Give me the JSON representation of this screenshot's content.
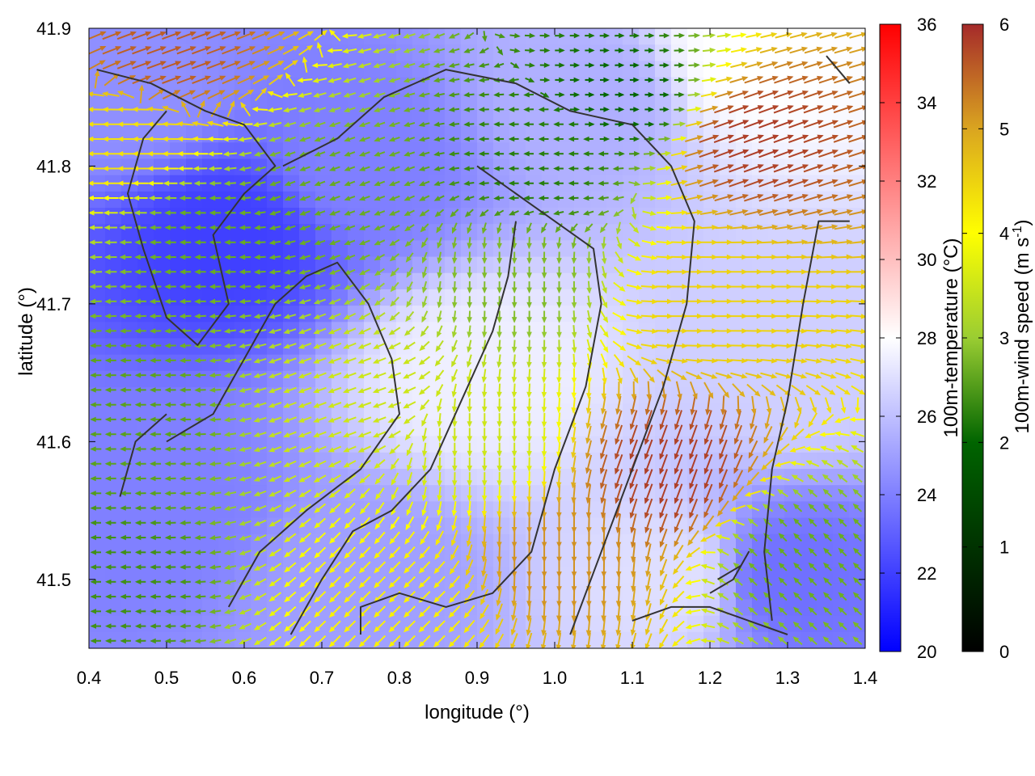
{
  "chart_data": {
    "type": "heatmap",
    "title": "",
    "xlabel": "longitude (°)",
    "ylabel": "latitude (°)",
    "xlim": [
      0.4,
      1.4
    ],
    "ylim": [
      41.45,
      41.9
    ],
    "x_ticks": [
      0.4,
      0.5,
      0.6,
      0.7,
      0.8,
      0.9,
      1.0,
      1.1,
      1.2,
      1.3,
      1.4
    ],
    "y_ticks": [
      41.5,
      41.6,
      41.7,
      41.8,
      41.9
    ],
    "x_tick_labels": [
      "0.4",
      "0.5",
      "0.6",
      "0.7",
      "0.8",
      "0.9",
      "1.0",
      "1.1",
      "1.2",
      "1.3",
      "1.4"
    ],
    "y_tick_labels": [
      "41.5",
      "41.6",
      "41.7",
      "41.8",
      "41.9"
    ],
    "temperature_colorbar": {
      "label": "100m-temperature (°C)",
      "range": [
        20,
        36
      ],
      "ticks": [
        20,
        22,
        24,
        26,
        28,
        30,
        32,
        34,
        36
      ],
      "tick_labels": [
        "20",
        "22",
        "24",
        "26",
        "28",
        "30",
        "32",
        "34",
        "36"
      ],
      "colors": [
        "#0000ff",
        "#ffffff",
        "#ff0000"
      ]
    },
    "wind_colorbar": {
      "label_main": "100m-wind speed (m s",
      "label_sup": "-1",
      "label_end": ")",
      "range": [
        0,
        6
      ],
      "ticks": [
        0,
        1,
        2,
        3,
        4,
        5,
        6
      ],
      "tick_labels": [
        "0",
        "1",
        "2",
        "3",
        "4",
        "5",
        "6"
      ],
      "colors": [
        "#000000",
        "#006400",
        "#9acd32",
        "#ffff00",
        "#daa520",
        "#a52a2a"
      ]
    },
    "temperature_field": [
      {
        "lon": 0.45,
        "lat": 41.85,
        "t": 24.5
      },
      {
        "lon": 0.58,
        "lat": 41.75,
        "t": 22.0
      },
      {
        "lon": 0.75,
        "lat": 41.8,
        "t": 24.0
      },
      {
        "lon": 0.9,
        "lat": 41.65,
        "t": 27.5
      },
      {
        "lon": 1.05,
        "lat": 41.85,
        "t": 25.5
      },
      {
        "lon": 1.25,
        "lat": 41.88,
        "t": 28.0
      },
      {
        "lon": 1.3,
        "lat": 41.65,
        "t": 26.5
      },
      {
        "lon": 1.15,
        "lat": 41.5,
        "t": 27.0
      },
      {
        "lon": 0.5,
        "lat": 41.55,
        "t": 24.0
      },
      {
        "lon": 0.75,
        "lat": 41.5,
        "t": 25.0
      },
      {
        "lon": 1.3,
        "lat": 41.5,
        "t": 23.5
      }
    ],
    "wind_regions": [
      {
        "lon": 0.45,
        "lat": 41.62,
        "dir_deg": 180,
        "speed": 1.9
      },
      {
        "lon": 0.42,
        "lat": 41.5,
        "dir_deg": 180,
        "speed": 1.7
      },
      {
        "lon": 0.55,
        "lat": 41.75,
        "dir_deg": 180,
        "speed": 2.0
      },
      {
        "lon": 0.7,
        "lat": 41.78,
        "dir_deg": 200,
        "speed": 2.0
      },
      {
        "lon": 0.75,
        "lat": 41.63,
        "dir_deg": 200,
        "speed": 3.0
      },
      {
        "lon": 0.8,
        "lat": 41.48,
        "dir_deg": 225,
        "speed": 3.8
      },
      {
        "lon": 0.9,
        "lat": 41.6,
        "dir_deg": 270,
        "speed": 3.0
      },
      {
        "lon": 0.95,
        "lat": 41.72,
        "dir_deg": 270,
        "speed": 2.2
      },
      {
        "lon": 0.98,
        "lat": 41.8,
        "dir_deg": 180,
        "speed": 1.5
      },
      {
        "lon": 1.0,
        "lat": 41.52,
        "dir_deg": 270,
        "speed": 5.0
      },
      {
        "lon": 1.15,
        "lat": 41.58,
        "dir_deg": 250,
        "speed": 5.8
      },
      {
        "lon": 1.2,
        "lat": 41.7,
        "dir_deg": 0,
        "speed": 4.2
      },
      {
        "lon": 1.25,
        "lat": 41.82,
        "dir_deg": 20,
        "speed": 5.8
      },
      {
        "lon": 0.5,
        "lat": 41.88,
        "dir_deg": 20,
        "speed": 5.5
      },
      {
        "lon": 0.45,
        "lat": 41.82,
        "dir_deg": 180,
        "speed": 4.0
      },
      {
        "lon": 1.32,
        "lat": 41.52,
        "dir_deg": 135,
        "speed": 2.0
      },
      {
        "lon": 1.1,
        "lat": 41.85,
        "dir_deg": 0,
        "speed": 1.2
      }
    ],
    "contours": [
      [
        [
          0.66,
          41.46
        ],
        [
          0.7,
          41.5
        ],
        [
          0.74,
          41.535
        ],
        [
          0.79,
          41.55
        ],
        [
          0.84,
          41.58
        ],
        [
          0.88,
          41.63
        ],
        [
          0.92,
          41.68
        ],
        [
          0.94,
          41.72
        ],
        [
          0.95,
          41.76
        ]
      ],
      [
        [
          0.75,
          41.46
        ],
        [
          0.75,
          41.48
        ],
        [
          0.8,
          41.49
        ],
        [
          0.86,
          41.48
        ],
        [
          0.92,
          41.49
        ],
        [
          0.97,
          41.52
        ],
        [
          1.0,
          41.58
        ],
        [
          1.04,
          41.64
        ],
        [
          1.06,
          41.7
        ],
        [
          1.05,
          41.74
        ],
        [
          1.0,
          41.76
        ],
        [
          0.95,
          41.78
        ],
        [
          0.9,
          41.8
        ]
      ],
      [
        [
          1.02,
          41.46
        ],
        [
          1.06,
          41.52
        ],
        [
          1.1,
          41.58
        ],
        [
          1.14,
          41.64
        ],
        [
          1.17,
          41.7
        ],
        [
          1.18,
          41.76
        ],
        [
          1.15,
          41.8
        ],
        [
          1.1,
          41.83
        ],
        [
          1.02,
          41.84
        ],
        [
          0.95,
          41.86
        ],
        [
          0.86,
          41.87
        ],
        [
          0.78,
          41.85
        ],
        [
          0.72,
          41.82
        ],
        [
          0.65,
          41.8
        ]
      ],
      [
        [
          1.28,
          41.47
        ],
        [
          1.27,
          41.52
        ],
        [
          1.28,
          41.58
        ],
        [
          1.3,
          41.63
        ],
        [
          1.32,
          41.7
        ],
        [
          1.34,
          41.76
        ],
        [
          1.38,
          41.76
        ]
      ],
      [
        [
          0.5,
          41.6
        ],
        [
          0.56,
          41.62
        ],
        [
          0.6,
          41.66
        ],
        [
          0.64,
          41.7
        ],
        [
          0.68,
          41.72
        ],
        [
          0.72,
          41.73
        ],
        [
          0.76,
          41.7
        ],
        [
          0.79,
          41.66
        ],
        [
          0.8,
          41.62
        ],
        [
          0.75,
          41.58
        ],
        [
          0.68,
          41.55
        ],
        [
          0.62,
          41.52
        ],
        [
          0.58,
          41.48
        ]
      ],
      [
        [
          0.44,
          41.56
        ],
        [
          0.46,
          41.6
        ],
        [
          0.5,
          41.62
        ]
      ],
      [
        [
          0.41,
          41.87
        ],
        [
          0.48,
          41.86
        ],
        [
          0.55,
          41.84
        ],
        [
          0.6,
          41.83
        ],
        [
          0.64,
          41.8
        ],
        [
          0.6,
          41.78
        ],
        [
          0.56,
          41.75
        ],
        [
          0.58,
          41.7
        ],
        [
          0.54,
          41.67
        ],
        [
          0.5,
          41.69
        ],
        [
          0.47,
          41.74
        ],
        [
          0.45,
          41.78
        ],
        [
          0.47,
          41.82
        ],
        [
          0.5,
          41.84
        ]
      ],
      [
        [
          1.35,
          41.88
        ],
        [
          1.38,
          41.86
        ]
      ],
      [
        [
          1.2,
          41.49
        ],
        [
          1.23,
          41.5
        ],
        [
          1.25,
          41.52
        ],
        [
          1.24,
          41.51
        ],
        [
          1.21,
          41.5
        ]
      ],
      [
        [
          1.1,
          41.47
        ],
        [
          1.15,
          41.48
        ],
        [
          1.2,
          41.48
        ],
        [
          1.25,
          41.47
        ],
        [
          1.3,
          41.46
        ]
      ]
    ]
  }
}
